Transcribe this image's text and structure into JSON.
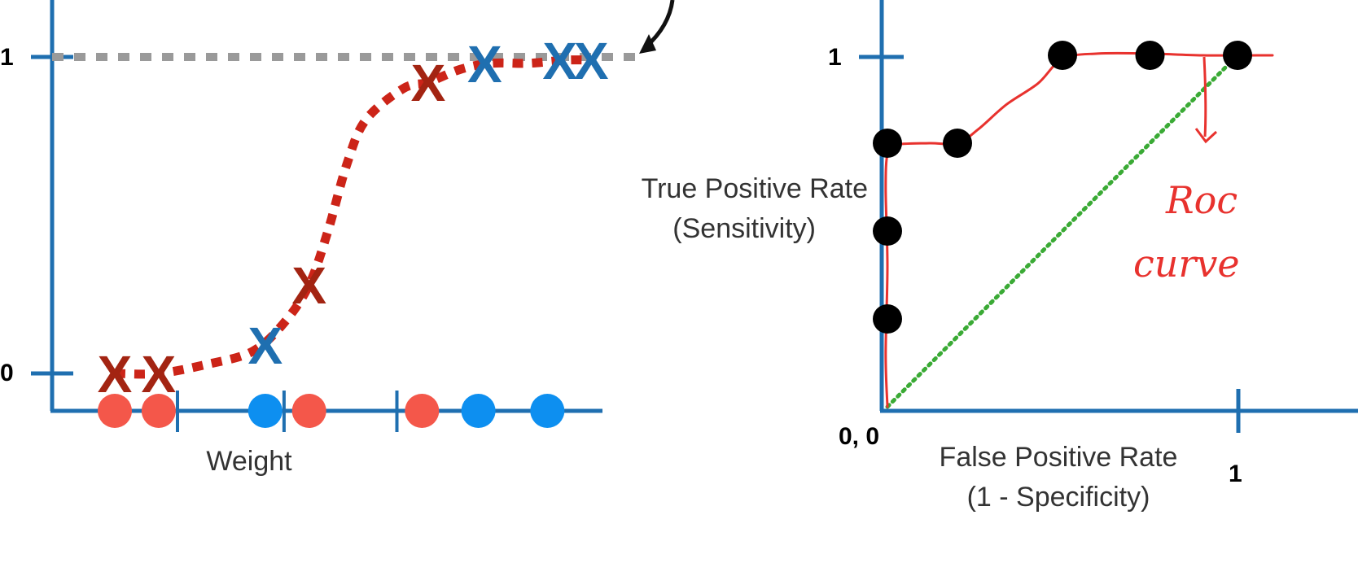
{
  "colors": {
    "axis": "#1f6fb0",
    "sigmoid": "#cc2418",
    "obese_x": "#1f6fb0",
    "not_obese_x": "#a32412",
    "obese_dot": "#0d8ff0",
    "not_obese_dot": "#f4574a",
    "reference_line": "#9a9a9a",
    "roc_point": "#000000",
    "diagonal": "#3aaa35",
    "roc_curve": "#e8322e"
  },
  "chart_data": [
    {
      "type": "scatter",
      "xlabel": "Weight",
      "ylabel": "",
      "yticks": [
        0,
        1
      ],
      "ylim": [
        0,
        1
      ],
      "grid": false,
      "points_x": [
        {
          "x": 1.0,
          "y": 0,
          "class": "not_obese"
        },
        {
          "x": 1.7,
          "y": 0,
          "class": "not_obese"
        },
        {
          "x": 3.4,
          "y": 0.09,
          "class": "obese"
        },
        {
          "x": 4.1,
          "y": 0.28,
          "class": "not_obese"
        },
        {
          "x": 6.0,
          "y": 0.92,
          "class": "not_obese"
        },
        {
          "x": 6.9,
          "y": 0.98,
          "class": "obese"
        },
        {
          "x": 8.1,
          "y": 0.99,
          "class": "obese"
        },
        {
          "x": 8.6,
          "y": 0.99,
          "class": "obese"
        }
      ],
      "points_dots": [
        {
          "x": 1.0,
          "class": "not_obese"
        },
        {
          "x": 1.7,
          "class": "not_obese"
        },
        {
          "x": 3.4,
          "class": "obese"
        },
        {
          "x": 4.1,
          "class": "not_obese"
        },
        {
          "x": 5.9,
          "class": "not_obese"
        },
        {
          "x": 6.8,
          "class": "obese"
        },
        {
          "x": 7.9,
          "class": "obese"
        }
      ],
      "threshold_ticks_x": [
        2.0,
        3.7,
        5.5
      ],
      "sigmoid": [
        [
          1.0,
          0.0
        ],
        [
          1.7,
          0.0
        ],
        [
          2.5,
          0.03
        ],
        [
          3.2,
          0.07
        ],
        [
          3.7,
          0.16
        ],
        [
          4.1,
          0.28
        ],
        [
          4.4,
          0.45
        ],
        [
          4.7,
          0.66
        ],
        [
          5.0,
          0.8
        ],
        [
          5.6,
          0.9
        ],
        [
          6.0,
          0.92
        ],
        [
          6.5,
          0.96
        ],
        [
          7.0,
          0.98
        ],
        [
          7.6,
          0.98
        ],
        [
          8.2,
          0.99
        ],
        [
          8.6,
          0.99
        ]
      ],
      "reference_line_y": 1
    },
    {
      "type": "line",
      "xlabel": "False Positive Rate\n(1 - Specificity)",
      "ylabel": "True Positive Rate\n(Sensitivity)",
      "xticks_text": [
        "0, 0",
        "1"
      ],
      "yticks_text": [
        "1"
      ],
      "xlim": [
        0,
        1
      ],
      "ylim": [
        0,
        1
      ],
      "grid": false,
      "roc_points": [
        {
          "x": 0.0,
          "y": 0.25
        },
        {
          "x": 0.0,
          "y": 0.5
        },
        {
          "x": 0.0,
          "y": 0.75
        },
        {
          "x": 0.2,
          "y": 0.75
        },
        {
          "x": 0.5,
          "y": 1.0
        },
        {
          "x": 0.75,
          "y": 1.0
        },
        {
          "x": 1.0,
          "y": 1.0
        }
      ],
      "diagonal": [
        [
          0,
          0
        ],
        [
          1,
          1
        ]
      ],
      "roc_curve": [
        [
          0.0,
          0.0
        ],
        [
          -0.005,
          0.15
        ],
        [
          0.0,
          0.4
        ],
        [
          -0.005,
          0.62
        ],
        [
          0.0,
          0.72
        ],
        [
          0.02,
          0.745
        ],
        [
          0.12,
          0.75
        ],
        [
          0.2,
          0.75
        ],
        [
          0.26,
          0.79
        ],
        [
          0.34,
          0.86
        ],
        [
          0.43,
          0.92
        ],
        [
          0.5,
          0.99
        ],
        [
          0.6,
          1.005
        ],
        [
          0.75,
          1.005
        ],
        [
          0.9,
          1.0
        ],
        [
          1.1,
          1.0
        ]
      ],
      "annotation": "Roc\ncurve"
    }
  ],
  "left_chart": {
    "ytick_labels": [
      "1",
      "0"
    ],
    "xlabel": "Weight"
  },
  "right_chart": {
    "ytick_label": "1",
    "origin_label": "0, 0",
    "xtick_label": "1",
    "ylabel_line1": "True Positive Rate",
    "ylabel_line2": "(Sensitivity)",
    "xlabel_line1": "False Positive Rate",
    "xlabel_line2": "(1 - Specificity)",
    "annotation_line1": "Roc",
    "annotation_line2": "curve"
  },
  "x_marker_glyph": "X"
}
